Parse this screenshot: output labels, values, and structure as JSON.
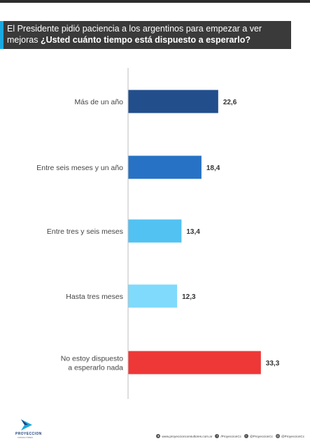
{
  "header": {
    "title_plain": "El Presidente pidió paciencia a los argentinos para empezar a ver mejoras ",
    "title_bold": "¿Usted cuánto tiempo está dispuesto a esperarlo?"
  },
  "chart_data": {
    "type": "bar",
    "orientation": "horizontal",
    "categories": [
      [
        "Más de un año"
      ],
      [
        "Entre seis meses y un año"
      ],
      [
        "Entre tres y seis meses"
      ],
      [
        "Hasta tres meses"
      ],
      [
        "No estoy dispuesto",
        "a esperarlo nada"
      ]
    ],
    "values": [
      22.6,
      18.4,
      13.4,
      12.3,
      33.3
    ],
    "value_labels": [
      "22,6",
      "18,4",
      "13,4",
      "12,3",
      "33,3"
    ],
    "colors": [
      "#224f8c",
      "#2772c4",
      "#52c2f2",
      "#7fdafb",
      "#ee3737"
    ],
    "xlim": [
      0,
      36
    ],
    "grid": false
  },
  "footer": {
    "logo_text": "PROYECCION",
    "logo_sub": "CONSULTORES",
    "links": [
      {
        "icon": "globe-icon",
        "text": "www.proyeccionconsultores.com.ar"
      },
      {
        "icon": "facebook-icon",
        "text": "/ProyeccionCc"
      },
      {
        "icon": "twitter-icon",
        "text": "@ProyeccionCc"
      },
      {
        "icon": "instagram-icon",
        "text": "@ProyeccionCc"
      }
    ]
  }
}
